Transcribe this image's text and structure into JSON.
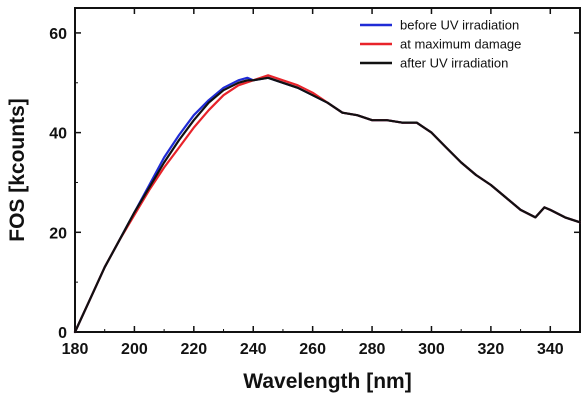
{
  "chart_data": {
    "type": "line",
    "xlabel": "Wavelength [nm]",
    "ylabel": "FOS [kcounts]",
    "xlim": [
      180,
      350
    ],
    "ylim": [
      0,
      65
    ],
    "xticks": [
      180,
      200,
      220,
      240,
      260,
      280,
      300,
      320,
      340
    ],
    "yticks": [
      0,
      20,
      40,
      60
    ],
    "legend_position": "top-right",
    "grid": false,
    "series": [
      {
        "name": "before UV irradiation",
        "color": "#1f2bd6",
        "x": [
          180,
          185,
          190,
          195,
          200,
          205,
          210,
          215,
          220,
          225,
          230,
          235,
          238,
          240,
          245,
          250,
          255,
          260,
          265,
          270,
          275,
          280,
          285,
          290,
          295,
          300,
          305,
          310,
          315,
          320,
          325,
          330,
          335,
          338,
          340,
          345,
          350
        ],
        "y": [
          0,
          6.5,
          13,
          18.5,
          24,
          29.5,
          35,
          39.5,
          43.5,
          46.5,
          49,
          50.5,
          51,
          50.5,
          51,
          50,
          49,
          47.5,
          46,
          44,
          43.5,
          42.5,
          42.5,
          42,
          42,
          40,
          37,
          34,
          31.5,
          29.5,
          27,
          24.5,
          23,
          25,
          24.5,
          23,
          22
        ]
      },
      {
        "name": "at maximum damage",
        "color": "#e8232a",
        "x": [
          180,
          185,
          190,
          195,
          200,
          205,
          210,
          215,
          220,
          225,
          230,
          235,
          240,
          245,
          250,
          255,
          260,
          265,
          270,
          275,
          280,
          285,
          290,
          295,
          300,
          305,
          310,
          315,
          320,
          325,
          330,
          335,
          338,
          340,
          345,
          350
        ],
        "y": [
          0,
          6.5,
          13,
          18.5,
          23.5,
          28.5,
          33,
          37,
          41,
          44.5,
          47.5,
          49.5,
          50.5,
          51.5,
          50.5,
          49.5,
          48,
          46,
          44,
          43.5,
          42.5,
          42.5,
          42,
          42,
          40,
          37,
          34,
          31.5,
          29.5,
          27,
          24.5,
          23,
          25,
          24.5,
          23,
          22
        ]
      },
      {
        "name": "after UV irradiation",
        "color": "#111111",
        "x": [
          180,
          185,
          190,
          195,
          200,
          205,
          210,
          215,
          220,
          225,
          230,
          235,
          238,
          240,
          245,
          250,
          255,
          260,
          265,
          270,
          275,
          280,
          285,
          290,
          295,
          300,
          305,
          310,
          315,
          320,
          325,
          330,
          335,
          338,
          340,
          345,
          350
        ],
        "y": [
          0,
          6.5,
          13,
          18.5,
          24,
          29,
          34,
          38.5,
          42.5,
          46,
          48.5,
          50,
          50.5,
          50.5,
          51,
          50,
          49,
          47.5,
          46,
          44,
          43.5,
          42.5,
          42.5,
          42,
          42,
          40,
          37,
          34,
          31.5,
          29.5,
          27,
          24.5,
          23,
          25,
          24.5,
          23,
          22
        ]
      }
    ]
  }
}
